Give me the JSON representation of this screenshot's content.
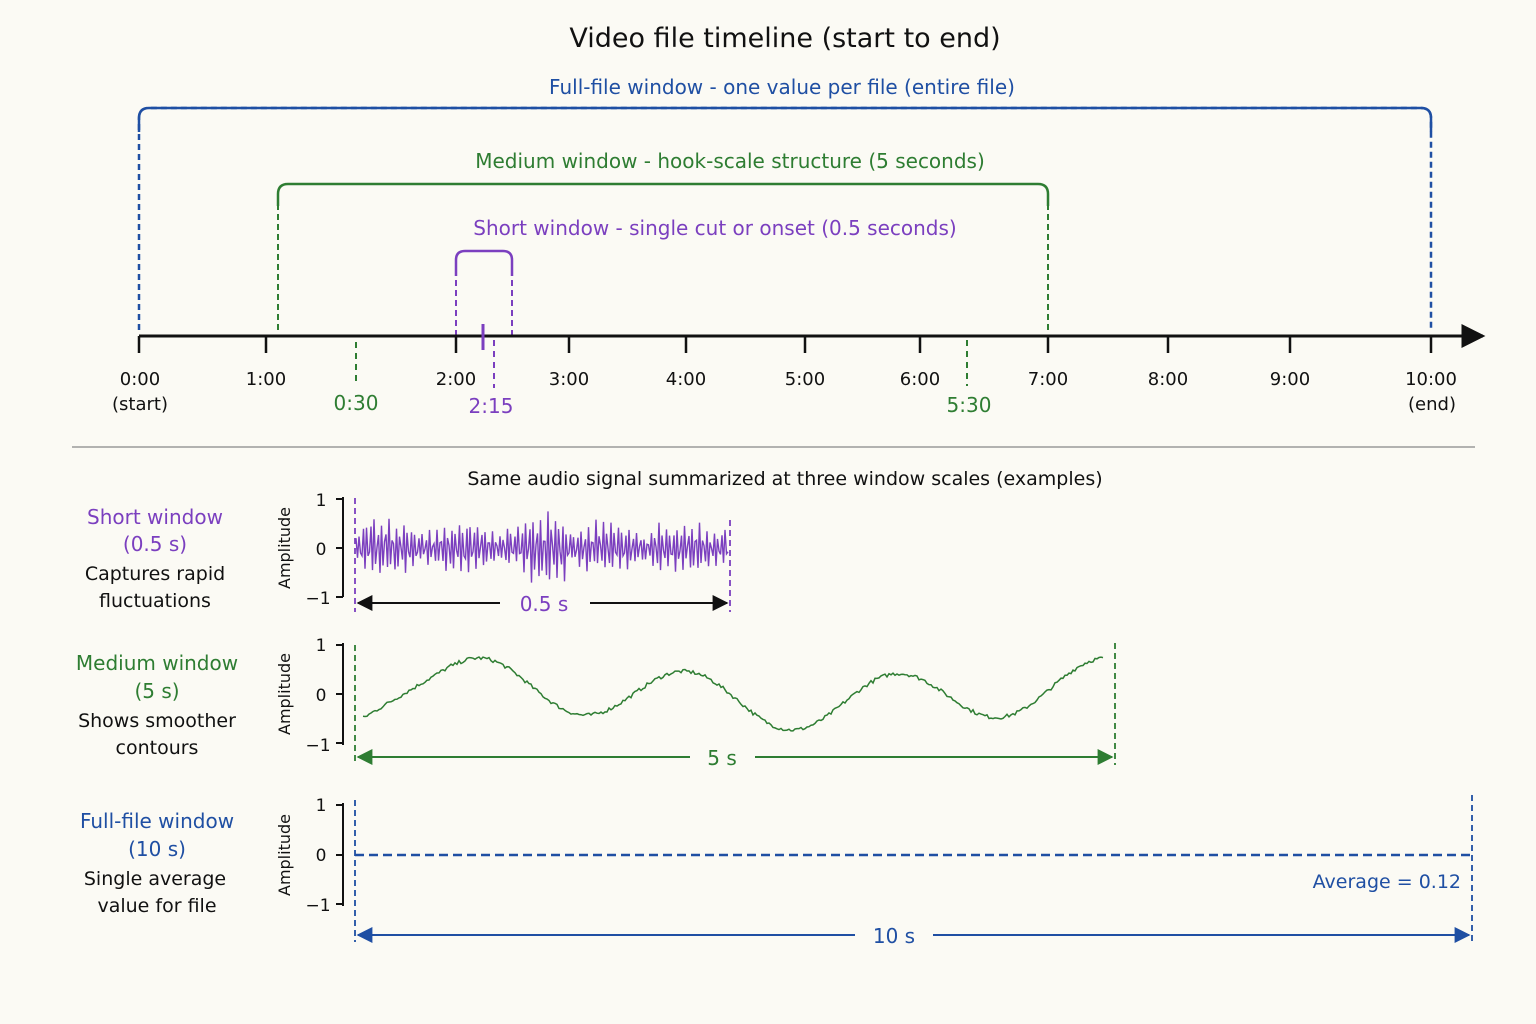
{
  "colors": {
    "full": "#1f4fa3",
    "medium": "#2e7d32",
    "short": "#7b3fbf",
    "axis": "#111111",
    "divider": "#9a9a9a"
  },
  "title": "Video file timeline (start to end)",
  "timeline": {
    "full_label": "Full-file window - one value per file (entire file)",
    "medium_label": "Medium window - hook-scale structure (5 seconds)",
    "short_label": "Short window - single cut or onset (0.5 seconds)",
    "ticks": [
      "0:00",
      "1:00",
      "2:00",
      "3:00",
      "4:00",
      "5:00",
      "6:00",
      "7:00",
      "8:00",
      "9:00",
      "10:00"
    ],
    "start_sub": "(start)",
    "end_sub": "(end)",
    "markers": [
      {
        "label": "0:30",
        "group": "medium"
      },
      {
        "label": "2:15",
        "group": "short"
      },
      {
        "label": "5:30",
        "group": "medium"
      }
    ]
  },
  "lower": {
    "subtitle": "Same audio signal summarized at three window scales (examples)",
    "y_axis_label": "Amplitude",
    "y_ticks": [
      "1",
      "0",
      "−1"
    ],
    "panels": [
      {
        "key": "short",
        "name": "Short window",
        "duration": "(0.5 s)",
        "desc1": "Captures rapid",
        "desc2": "fluctuations",
        "span_label": "0.5 s"
      },
      {
        "key": "medium",
        "name": "Medium window",
        "duration": "(5 s)",
        "desc1": "Shows smoother",
        "desc2": "contours",
        "span_label": "5 s"
      },
      {
        "key": "full",
        "name": "Full-file window",
        "duration": "(10 s)",
        "desc1": "Single average",
        "desc2": "value for file",
        "span_label": "10 s",
        "average_label": "Average = 0.12",
        "average_value": 0.12
      }
    ]
  }
}
